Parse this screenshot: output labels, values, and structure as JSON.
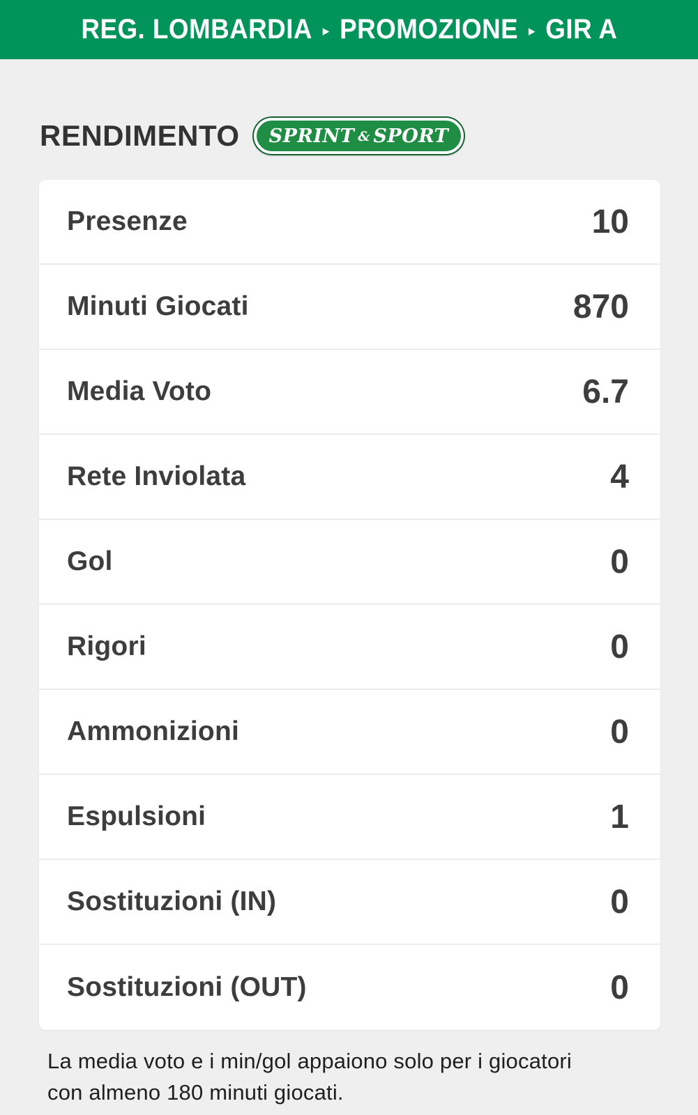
{
  "header": {
    "breadcrumb": [
      "REG. LOMBARDIA",
      "PROMOZIONE",
      "GIR A"
    ],
    "separator": "▸"
  },
  "section": {
    "title": "RENDIMENTO"
  },
  "logo": {
    "word1": "SPRINT",
    "amp": "&",
    "word2": "SPORT"
  },
  "table": {
    "rows": [
      {
        "label": "Presenze",
        "value": "10"
      },
      {
        "label": "Minuti Giocati",
        "value": "870"
      },
      {
        "label": "Media Voto",
        "value": "6.7"
      },
      {
        "label": "Rete Inviolata",
        "value": "4"
      },
      {
        "label": "Gol",
        "value": "0"
      },
      {
        "label": "Rigori",
        "value": "0"
      },
      {
        "label": "Ammonizioni",
        "value": "0"
      },
      {
        "label": "Espulsioni",
        "value": "1"
      },
      {
        "label": "Sostituzioni (IN)",
        "value": "0"
      },
      {
        "label": "Sostituzioni (OUT)",
        "value": "0"
      }
    ]
  },
  "footer": {
    "line1": "La media voto e i min/gol appaiono solo per i giocatori",
    "line2": "con almeno 180 minuti giocati."
  },
  "colors": {
    "header_green": "#00945b",
    "logo_green": "#1f8e44",
    "logo_outline": "#155f31",
    "text_dark": "#3d3d3d",
    "page_bg": "#efefef",
    "card_bg": "#ffffff",
    "divider": "#ececec",
    "footer_text": "#1f1f1f"
  }
}
